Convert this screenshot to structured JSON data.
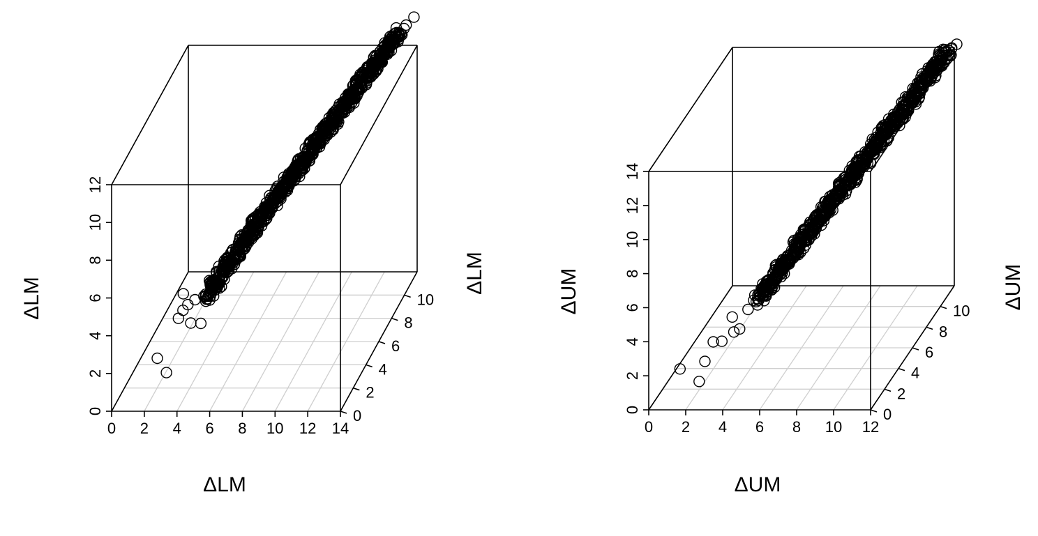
{
  "chart_data": [
    {
      "type": "scatter3d",
      "title": "",
      "xlabel": "ΔLM",
      "ylabel": "ΔLM",
      "zlabel": "ΔLM",
      "xlim": [
        0,
        14
      ],
      "ylim": [
        0,
        12
      ],
      "zlim": [
        0,
        12
      ],
      "x_ticks": [
        "0",
        "2",
        "4",
        "6",
        "8",
        "10",
        "12",
        "14"
      ],
      "y_ticks": [
        "0",
        "2",
        "4",
        "6",
        "8",
        "10"
      ],
      "z_ticks": [
        "0",
        "2",
        "4",
        "6",
        "8",
        "10",
        "12"
      ],
      "grid_plane": "bottom",
      "marker": "open-circle",
      "points": [
        [
          2.6,
          0.5,
          2.5
        ],
        [
          3.2,
          0.4,
          1.8
        ],
        [
          3.8,
          1.5,
          5.3
        ],
        [
          4.4,
          1.8,
          4.8
        ],
        [
          3.5,
          1.5,
          4.0
        ],
        [
          3.7,
          1.7,
          4.3
        ],
        [
          4.0,
          1.7,
          4.6
        ],
        [
          4.6,
          2.2,
          3.3
        ],
        [
          4.1,
          1.9,
          3.5
        ],
        [
          4.8,
          2.7,
          4.3
        ],
        [
          5.0,
          3.0,
          5.0
        ],
        [
          5.2,
          3.1,
          4.8
        ],
        [
          5.4,
          3.3,
          5.2
        ],
        [
          5.6,
          3.5,
          5.5
        ],
        [
          5.8,
          3.7,
          5.6
        ],
        [
          6.0,
          3.9,
          5.9
        ],
        [
          6.2,
          4.1,
          6.0
        ],
        [
          6.4,
          4.3,
          6.4
        ],
        [
          6.6,
          4.5,
          6.5
        ],
        [
          6.8,
          4.7,
          6.8
        ],
        [
          7.0,
          4.9,
          7.0
        ],
        [
          7.2,
          5.1,
          7.2
        ],
        [
          7.4,
          5.3,
          7.3
        ],
        [
          7.6,
          5.5,
          7.6
        ],
        [
          7.8,
          5.7,
          7.8
        ],
        [
          8.0,
          5.9,
          8.0
        ],
        [
          8.2,
          6.1,
          8.1
        ],
        [
          8.4,
          6.3,
          8.4
        ],
        [
          8.6,
          6.5,
          8.6
        ],
        [
          8.8,
          6.7,
          8.8
        ],
        [
          9.0,
          6.9,
          9.0
        ],
        [
          9.2,
          7.1,
          9.1
        ],
        [
          9.4,
          7.3,
          9.4
        ],
        [
          9.6,
          7.5,
          9.6
        ],
        [
          9.8,
          7.7,
          9.8
        ],
        [
          10.0,
          7.9,
          10.0
        ],
        [
          10.2,
          8.1,
          10.1
        ],
        [
          10.4,
          8.3,
          10.4
        ],
        [
          10.6,
          8.5,
          10.6
        ],
        [
          10.8,
          8.7,
          10.8
        ],
        [
          11.0,
          8.9,
          11.0
        ],
        [
          11.2,
          9.1,
          11.1
        ],
        [
          11.4,
          9.3,
          11.4
        ],
        [
          11.6,
          9.5,
          11.6
        ],
        [
          11.8,
          9.7,
          11.8
        ],
        [
          12.0,
          9.9,
          12.0
        ],
        [
          12.2,
          10.1,
          12.1
        ],
        [
          12.4,
          10.3,
          12.4
        ],
        [
          12.6,
          10.5,
          12.6
        ],
        [
          12.8,
          10.7,
          12.8
        ],
        [
          13.0,
          10.9,
          13.0
        ],
        [
          13.3,
          11.1,
          13.2
        ],
        [
          13.6,
          11.3,
          13.5
        ],
        [
          14.0,
          11.5,
          13.8
        ]
      ]
    },
    {
      "type": "scatter3d",
      "title": "",
      "xlabel": "ΔUM",
      "ylabel": "ΔUM",
      "zlabel": "ΔUM",
      "xlim": [
        0,
        12
      ],
      "ylim": [
        0,
        12
      ],
      "zlim": [
        0,
        14
      ],
      "x_ticks": [
        "0",
        "2",
        "4",
        "6",
        "8",
        "10",
        "12"
      ],
      "y_ticks": [
        "0",
        "2",
        "4",
        "6",
        "8",
        "10"
      ],
      "z_ticks": [
        "0",
        "2",
        "4",
        "6",
        "8",
        "10",
        "12",
        "14"
      ],
      "grid_plane": "bottom",
      "marker": "open-circle",
      "points": [
        [
          1.5,
          0.5,
          2.1
        ],
        [
          2.5,
          0.6,
          1.3
        ],
        [
          2.7,
          0.9,
          2.3
        ],
        [
          3.0,
          1.3,
          3.2
        ],
        [
          3.5,
          1.2,
          3.3
        ],
        [
          4.0,
          1.6,
          3.6
        ],
        [
          4.2,
          1.9,
          3.6
        ],
        [
          3.8,
          1.9,
          4.3
        ],
        [
          4.5,
          2.3,
          4.5
        ],
        [
          4.9,
          2.7,
          4.8
        ],
        [
          5.1,
          2.9,
          5.2
        ],
        [
          5.3,
          3.1,
          5.4
        ],
        [
          5.5,
          3.3,
          5.7
        ],
        [
          5.7,
          3.5,
          6.0
        ],
        [
          5.9,
          3.7,
          6.3
        ],
        [
          6.1,
          3.9,
          6.5
        ],
        [
          6.3,
          4.1,
          6.8
        ],
        [
          6.5,
          4.3,
          7.1
        ],
        [
          6.7,
          4.5,
          7.3
        ],
        [
          6.9,
          4.7,
          7.6
        ],
        [
          7.1,
          4.9,
          7.9
        ],
        [
          7.3,
          5.1,
          8.1
        ],
        [
          7.5,
          5.3,
          8.4
        ],
        [
          7.7,
          5.5,
          8.7
        ],
        [
          7.9,
          5.7,
          8.9
        ],
        [
          8.1,
          5.9,
          9.2
        ],
        [
          8.3,
          6.1,
          9.5
        ],
        [
          8.5,
          6.3,
          9.7
        ],
        [
          8.7,
          6.5,
          10.0
        ],
        [
          8.9,
          6.7,
          10.3
        ],
        [
          9.1,
          6.9,
          10.5
        ],
        [
          9.3,
          7.1,
          10.8
        ],
        [
          9.5,
          7.3,
          11.1
        ],
        [
          9.7,
          7.5,
          11.3
        ],
        [
          9.9,
          7.7,
          11.6
        ],
        [
          10.1,
          7.9,
          11.9
        ],
        [
          10.3,
          8.1,
          12.1
        ],
        [
          10.5,
          8.3,
          12.4
        ],
        [
          10.7,
          8.5,
          12.7
        ],
        [
          10.9,
          8.7,
          12.9
        ],
        [
          11.1,
          8.9,
          13.2
        ],
        [
          11.3,
          9.1,
          13.5
        ],
        [
          11.5,
          9.3,
          13.8
        ],
        [
          11.7,
          9.5,
          14.0
        ],
        [
          11.9,
          9.7,
          14.3
        ],
        [
          12.1,
          9.9,
          14.6
        ],
        [
          12.3,
          10.1,
          14.9
        ],
        [
          12.5,
          10.3,
          15.0
        ],
        [
          12.7,
          10.5,
          15.1
        ]
      ]
    }
  ]
}
